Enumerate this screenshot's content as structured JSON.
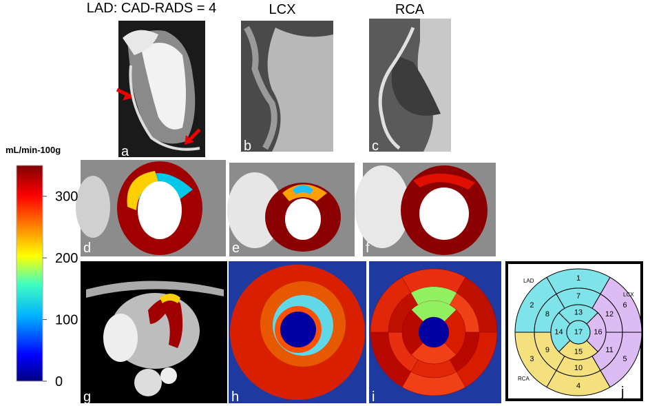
{
  "titles": [
    "LAD: CAD-RADS = 4",
    "LCX",
    "RCA"
  ],
  "panels": [
    "a",
    "b",
    "c",
    "d",
    "e",
    "f",
    "g",
    "h",
    "i",
    "j"
  ],
  "colorbar": {
    "label": "mL/min-100g",
    "lim": [
      0,
      350
    ],
    "ticks": [
      0,
      100,
      200,
      300
    ]
  },
  "bullseye": {
    "segments": [
      "1",
      "2",
      "3",
      "4",
      "5",
      "6",
      "7",
      "8",
      "9",
      "10",
      "11",
      "12",
      "13",
      "14",
      "15",
      "16",
      "17"
    ],
    "territories": [
      "LAD",
      "LCX",
      "RCA"
    ]
  }
}
